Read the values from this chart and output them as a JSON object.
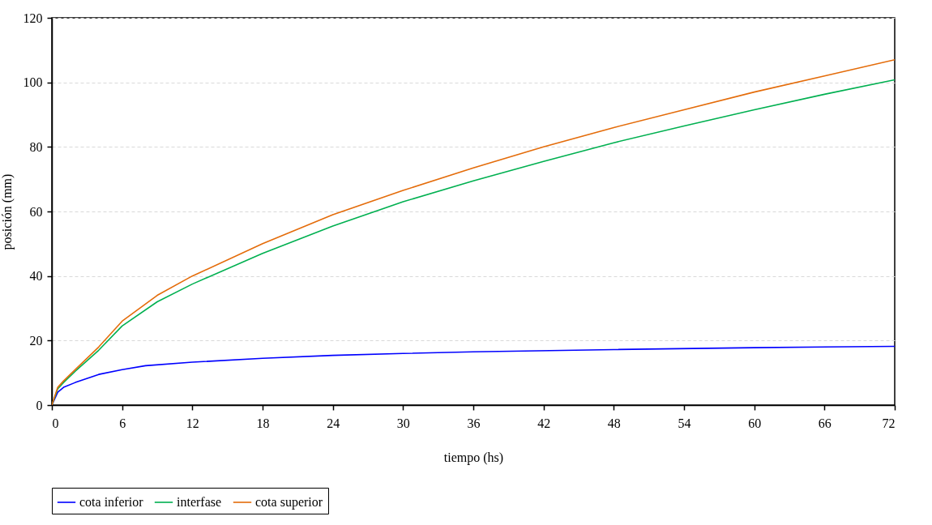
{
  "chart_data": {
    "type": "line",
    "xlabel": "tiempo (hs)",
    "ylabel": "posición (mm)",
    "xlim": [
      0,
      72
    ],
    "xticks": [
      0,
      6,
      12,
      18,
      24,
      30,
      36,
      42,
      48,
      54,
      60,
      66,
      72
    ],
    "ylim": [
      0,
      120
    ],
    "yticks": [
      0,
      20,
      40,
      60,
      80,
      100,
      120
    ],
    "grid": "y",
    "legend": "bottom",
    "marker": "none",
    "line_style": "solid",
    "series": [
      {
        "name": "cota inferior",
        "color": "#0000ff",
        "x": [
          0,
          0.5,
          1,
          2,
          4,
          6,
          8,
          12,
          18,
          24,
          30,
          36,
          48,
          60,
          72
        ],
        "values": [
          0,
          4,
          5.5,
          7,
          9.5,
          11,
          12.2,
          13.3,
          14.5,
          15.4,
          16,
          16.5,
          17.2,
          17.8,
          18.2
        ]
      },
      {
        "name": "interfase",
        "color": "#00b050",
        "x": [
          0,
          0.5,
          1,
          2,
          4,
          6,
          9,
          12,
          18,
          24,
          30,
          36,
          42,
          48,
          54,
          60,
          66,
          72
        ],
        "values": [
          0,
          5,
          7,
          10.5,
          17,
          24.5,
          32,
          37.5,
          47,
          55.5,
          63,
          69.5,
          75.5,
          81.3,
          86.5,
          91.5,
          96.3,
          100.8
        ]
      },
      {
        "name": "cota superior",
        "color": "#e46c0a",
        "x": [
          0,
          0.5,
          1,
          2,
          4,
          6,
          9,
          12,
          18,
          24,
          30,
          36,
          42,
          48,
          54,
          60,
          66,
          72
        ],
        "values": [
          0,
          5.5,
          7.5,
          11,
          18,
          26,
          34,
          40,
          50,
          59,
          66.5,
          73.5,
          80,
          86,
          91.5,
          97,
          102,
          107
        ]
      }
    ]
  }
}
